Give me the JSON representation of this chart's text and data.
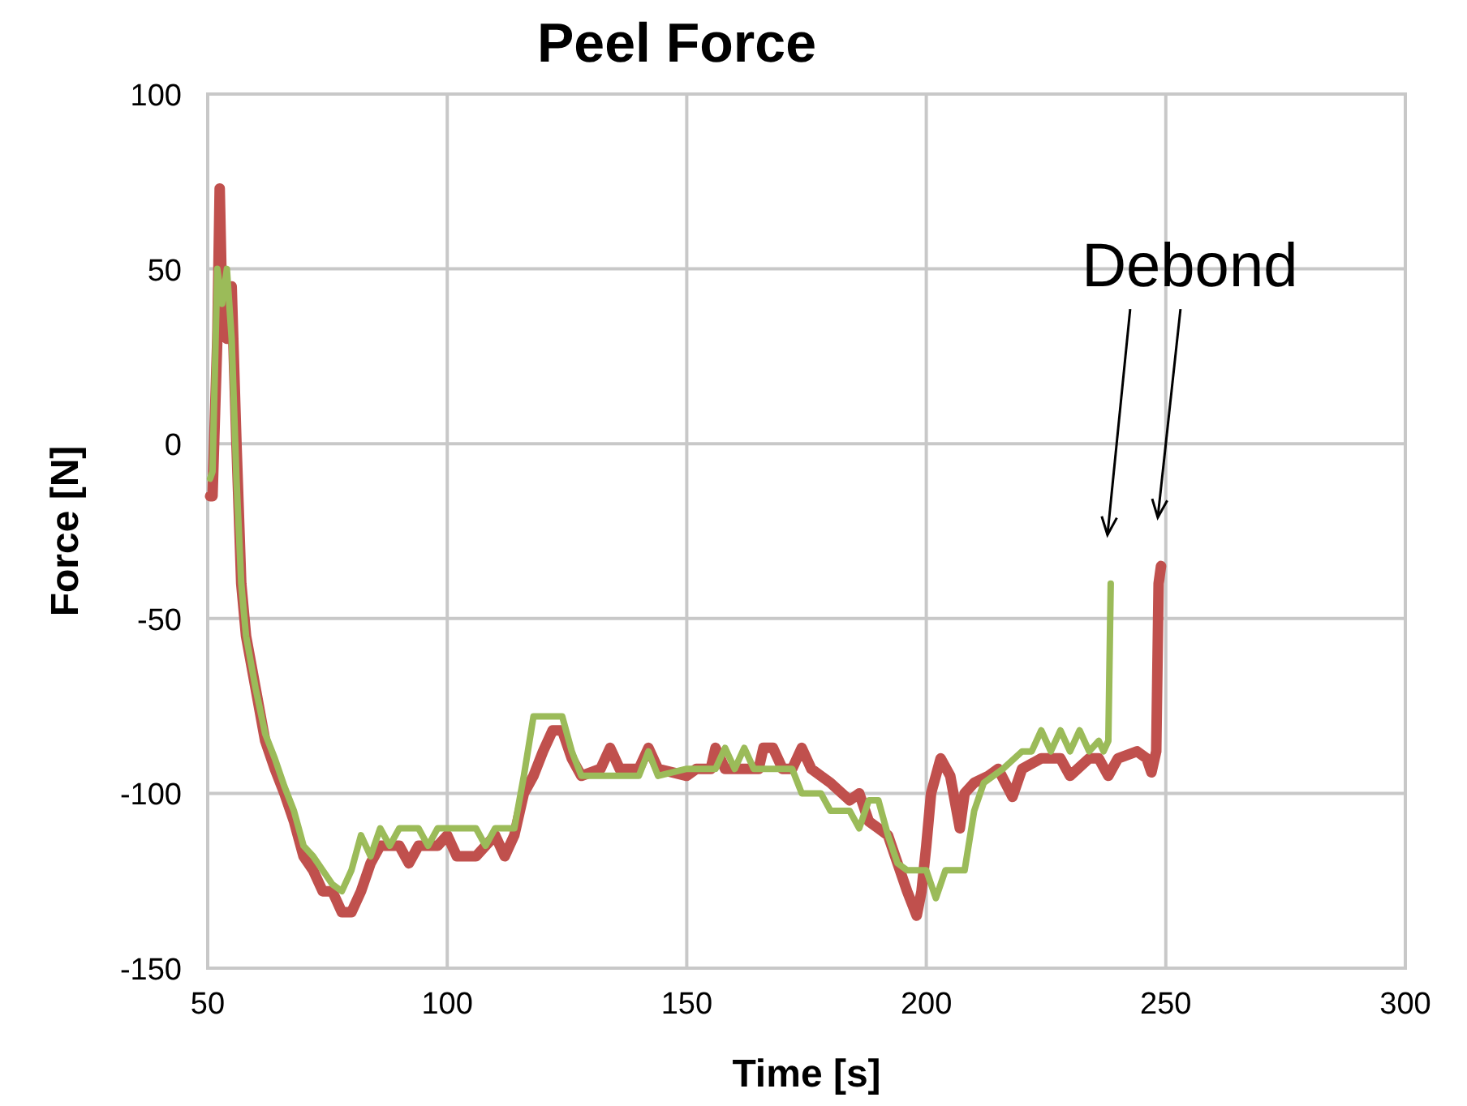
{
  "chart_data": {
    "type": "line",
    "title": "Peel Force",
    "xlabel": "Time [s]",
    "ylabel": "Force [N]",
    "xlim": [
      50,
      300
    ],
    "xticks": [
      50,
      100,
      150,
      200,
      250,
      300
    ],
    "ylim": [
      -150,
      100
    ],
    "yticks": [
      -150,
      -100,
      -50,
      0,
      50,
      100
    ],
    "grid": true,
    "marker": "none",
    "line_style": "solid",
    "annotations": [
      "Debond"
    ],
    "series": [
      {
        "color": "#c0504d",
        "x": [
          50.5,
          51,
          52,
          52.5,
          53,
          54,
          55,
          56,
          57,
          58,
          60,
          62,
          64,
          66,
          68,
          70,
          72,
          74,
          76,
          78,
          80,
          82,
          84,
          86,
          90,
          92,
          94,
          98,
          100,
          102,
          106,
          110,
          112,
          114,
          116,
          118,
          120,
          122,
          124,
          126,
          128,
          132,
          134,
          136,
          140,
          142,
          144,
          150,
          152,
          155,
          156,
          158,
          165,
          166,
          168,
          170,
          172,
          174,
          176,
          180,
          184,
          186,
          188,
          190,
          192,
          194,
          196,
          198,
          199,
          200,
          201,
          203,
          205,
          207,
          208,
          210,
          213,
          215,
          218,
          220,
          224,
          228,
          230,
          234,
          236,
          238,
          240,
          244,
          246,
          247,
          248,
          248.5,
          249
        ],
        "values": [
          -15,
          -15,
          30,
          73,
          40,
          30,
          45,
          0,
          -40,
          -55,
          -70,
          -85,
          -93,
          -100,
          -108,
          -118,
          -122,
          -128,
          -128,
          -134,
          -134,
          -128,
          -120,
          -115,
          -115,
          -120,
          -115,
          -115,
          -112,
          -118,
          -118,
          -112,
          -118,
          -112,
          -100,
          -95,
          -88,
          -82,
          -82,
          -90,
          -95,
          -93,
          -87,
          -93,
          -93,
          -87,
          -93,
          -95,
          -93,
          -93,
          -87,
          -93,
          -93,
          -87,
          -87,
          -93,
          -93,
          -87,
          -93,
          -97,
          -102,
          -100,
          -108,
          -110,
          -112,
          -120,
          -128,
          -135,
          -128,
          -115,
          -100,
          -90,
          -95,
          -110,
          -100,
          -97,
          -95,
          -93,
          -101,
          -93,
          -90,
          -90,
          -95,
          -90,
          -90,
          -95,
          -90,
          -88,
          -90,
          -94,
          -88,
          -40,
          -35
        ]
      },
      {
        "color": "#9bbb59",
        "x": [
          50.5,
          51,
          52,
          53,
          54,
          55,
          56,
          57,
          58,
          60,
          62,
          64,
          66,
          68,
          70,
          72,
          74,
          76,
          78,
          80,
          82,
          84,
          86,
          88,
          90,
          94,
          96,
          98,
          106,
          108,
          110,
          114,
          116,
          118,
          124,
          126,
          128,
          140,
          142,
          144,
          150,
          156,
          158,
          160,
          162,
          164,
          172,
          174,
          178,
          180,
          184,
          186,
          188,
          190,
          192,
          194,
          196,
          200,
          202,
          204,
          208,
          210,
          212,
          216,
          220,
          222,
          224,
          226,
          228,
          230,
          232,
          234,
          236,
          237,
          238,
          238.5
        ],
        "values": [
          -10,
          -8,
          50,
          40,
          50,
          30,
          -10,
          -40,
          -55,
          -70,
          -83,
          -90,
          -98,
          -105,
          -115,
          -118,
          -122,
          -126,
          -128,
          -122,
          -112,
          -118,
          -110,
          -115,
          -110,
          -110,
          -115,
          -110,
          -110,
          -115,
          -110,
          -110,
          -95,
          -78,
          -78,
          -88,
          -95,
          -95,
          -88,
          -95,
          -93,
          -93,
          -87,
          -93,
          -87,
          -93,
          -93,
          -100,
          -100,
          -105,
          -105,
          -110,
          -102,
          -102,
          -112,
          -120,
          -122,
          -122,
          -130,
          -122,
          -122,
          -105,
          -97,
          -93,
          -88,
          -88,
          -82,
          -88,
          -82,
          -88,
          -82,
          -88,
          -85,
          -88,
          -85,
          -40
        ]
      }
    ]
  }
}
